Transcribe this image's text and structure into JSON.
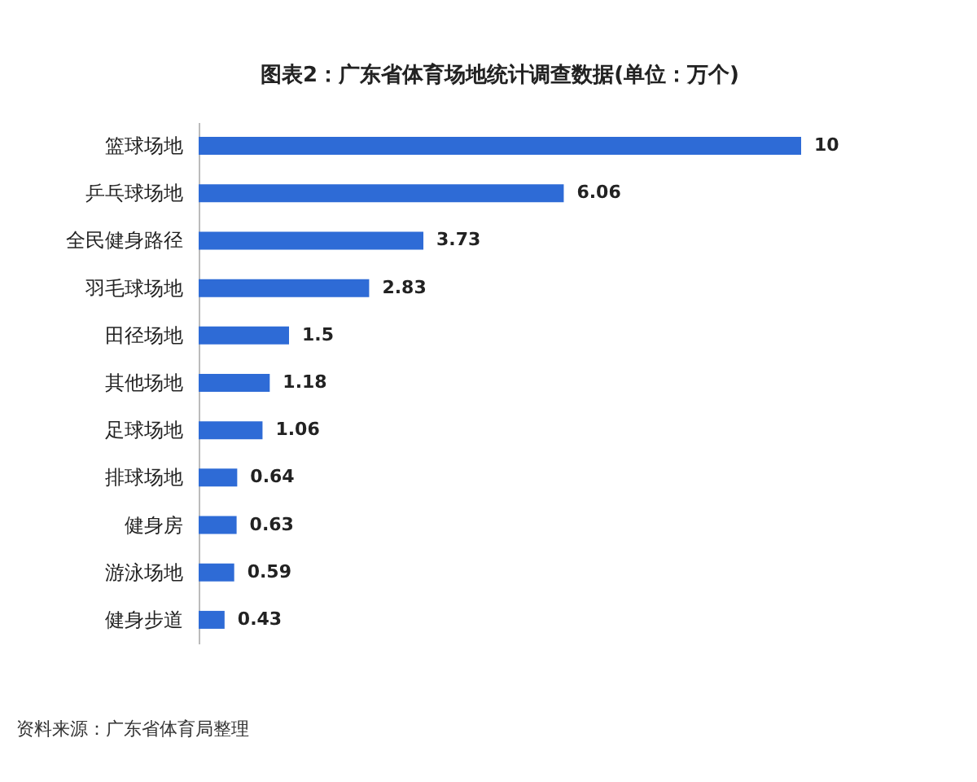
{
  "chart_data": {
    "type": "bar",
    "orientation": "horizontal",
    "title": "图表2：广东省体育场地统计调查数据(单位：万个)",
    "categories": [
      "篮球场地",
      "乒乓球场地",
      "全民健身路径",
      "羽毛球场地",
      "田径场地",
      "其他场地",
      "足球场地",
      "排球场地",
      "健身房",
      "游泳场地",
      "健身步道"
    ],
    "values": [
      10,
      6.06,
      3.73,
      2.83,
      1.5,
      1.18,
      1.06,
      0.64,
      0.63,
      0.59,
      0.43
    ],
    "color": "#2e6bd6",
    "data_labels": true,
    "tick_labels": "y",
    "annotations": [
      "资料来源：广东省体育局整理"
    ]
  }
}
